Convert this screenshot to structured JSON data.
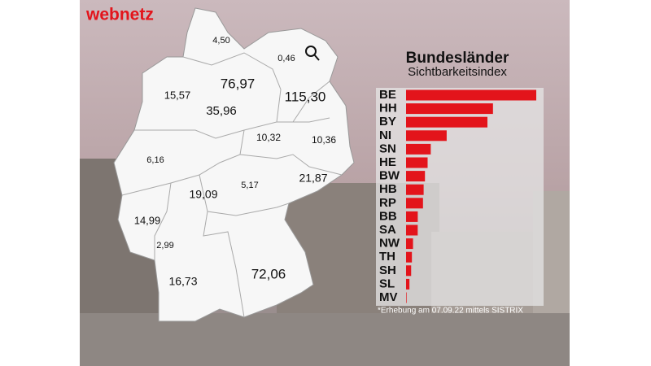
{
  "brand": "webnetz",
  "chart_data": {
    "type": "bar",
    "orientation": "horizontal",
    "title": "Bundesländer",
    "subtitle": "Sichtbarkeitsindex",
    "note": "*Erhebung am 07.09.22 mittels SISTRIX",
    "color": "#e3141b",
    "categories": [
      "BE",
      "HH",
      "BY",
      "NI",
      "SN",
      "HE",
      "BW",
      "HB",
      "RP",
      "BB",
      "SA",
      "NW",
      "TH",
      "SH",
      "SL",
      "MV"
    ],
    "values": [
      115.3,
      76.97,
      72.06,
      35.96,
      21.87,
      19.09,
      16.73,
      15.57,
      14.99,
      10.36,
      10.32,
      6.16,
      5.17,
      4.5,
      2.99,
      0.46
    ],
    "value_labels": [
      "115,30",
      "76,97",
      "72,06",
      "35,96",
      "21,87",
      "19,09",
      "16,73",
      "15,57",
      "14,99",
      "10,36",
      "10,32",
      "6,16",
      "5,17",
      "4,50",
      "2,99",
      "0,46"
    ]
  }
}
